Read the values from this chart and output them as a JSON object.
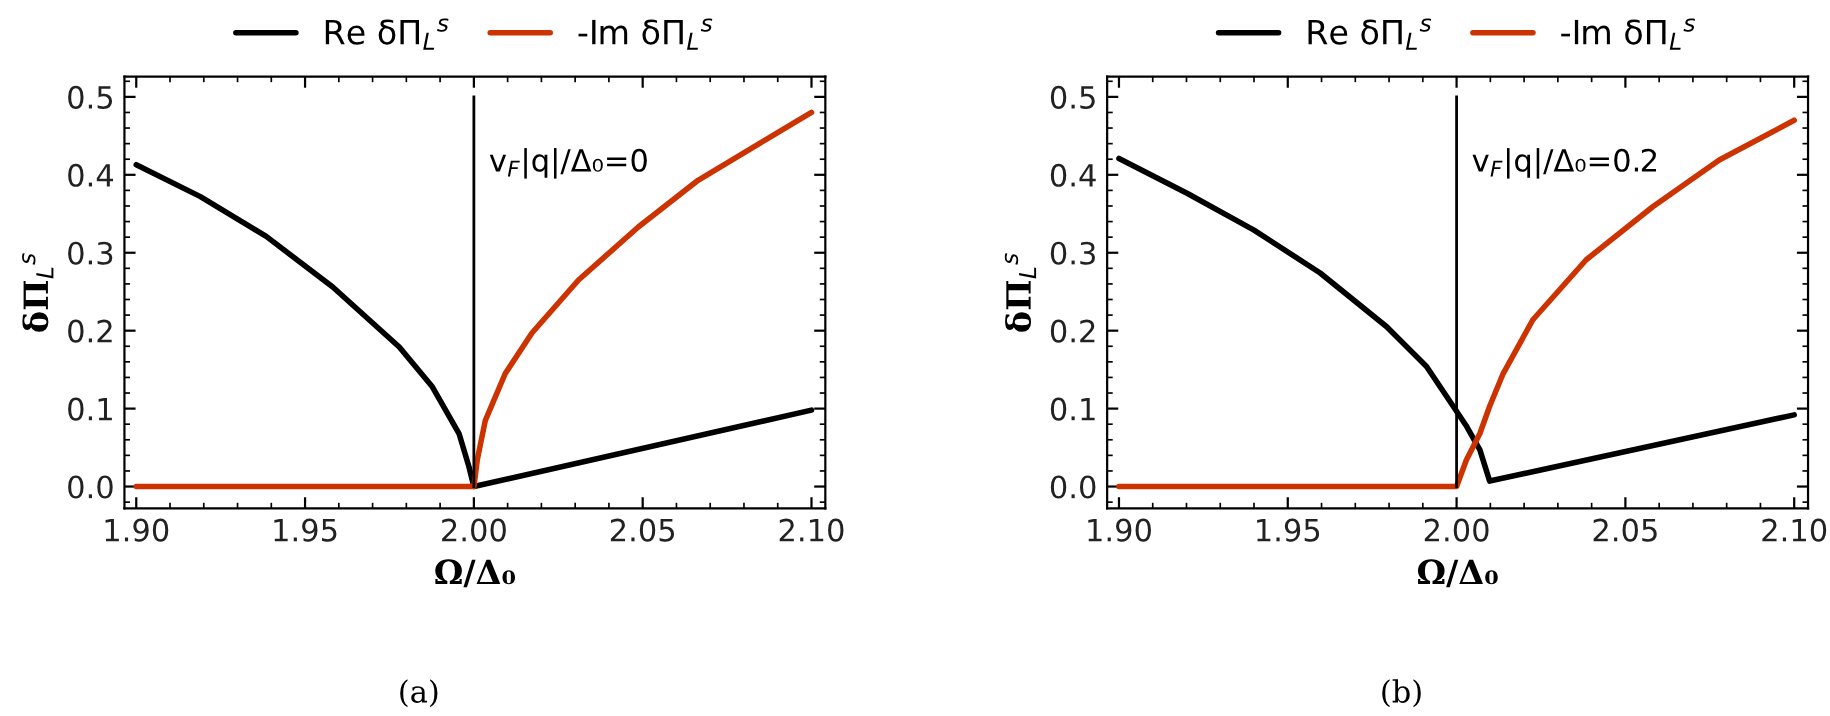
{
  "chart_data": [
    {
      "type": "line",
      "xlabel": "Ω/Δ₀",
      "ylabel": "δΠ$_{L}$$^{s}$",
      "xlim": [
        1.8965,
        2.1041
      ],
      "ylim": [
        -0.028,
        0.526
      ],
      "xticks": [
        {
          "value": 1.9,
          "label": "1.90"
        },
        {
          "value": 1.95,
          "label": "1.95"
        },
        {
          "value": 2.0,
          "label": "2.00"
        },
        {
          "value": 2.05,
          "label": "2.05"
        },
        {
          "value": 2.1,
          "label": "2.10"
        }
      ],
      "yticks": [
        {
          "value": 0,
          "label": "0.0"
        },
        0.1,
        0.2,
        0.3,
        0.4,
        0.5
      ],
      "grid": false,
      "legend": "top",
      "annotations": [
        "v$_{F}$|q|/Δ₀=0",
        "(a)"
      ],
      "ref_lines": [
        {
          "axis": "x",
          "value": 2.0,
          "color": "#000000"
        }
      ],
      "series": [
        {
          "name": "Re δΠ$_{L}$$^{s}$",
          "color": "#000000",
          "x": [
            1.9,
            1.919,
            1.9385,
            1.9582,
            1.9779,
            1.9877,
            1.9956,
            1.9985,
            2.0,
            2.1
          ],
          "values": [
            0.413,
            0.372,
            0.321,
            0.256,
            0.179,
            0.128,
            0.068,
            0.026,
            0.0,
            0.098
          ]
        },
        {
          "name": "-Im δΠ$_{L}$$^{s}$",
          "color": "#cc3300",
          "x": [
            1.9,
            2.0,
            2.001,
            2.0034,
            2.0093,
            2.0172,
            2.031,
            2.0487,
            2.0664,
            2.086,
            2.1
          ],
          "values": [
            0.0,
            0.0,
            0.034,
            0.085,
            0.145,
            0.197,
            0.265,
            0.333,
            0.393,
            0.444,
            0.48
          ]
        }
      ]
    },
    {
      "type": "line",
      "xlabel": "Ω/Δ₀",
      "ylabel": "δΠ$_{L}$$^{s}$",
      "xlim": [
        1.8965,
        2.1041
      ],
      "ylim": [
        -0.028,
        0.526
      ],
      "xticks": [
        {
          "value": 1.9,
          "label": "1.90"
        },
        {
          "value": 1.95,
          "label": "1.95"
        },
        {
          "value": 2.0,
          "label": "2.00"
        },
        {
          "value": 2.05,
          "label": "2.05"
        },
        {
          "value": 2.1,
          "label": "2.10"
        }
      ],
      "yticks": [
        {
          "value": 0,
          "label": "0.0"
        },
        0.1,
        0.2,
        0.3,
        0.4,
        0.5
      ],
      "grid": false,
      "legend": "top",
      "annotations": [
        "v$_{F}$|q|/Δ₀=0.2",
        "(b)"
      ],
      "ref_lines": [
        {
          "axis": "x",
          "value": 2.0,
          "color": "#000000"
        }
      ],
      "series": [
        {
          "name": "Re δΠ$_{L}$$^{s}$",
          "color": "#000000",
          "x": [
            1.9,
            1.9203,
            1.94,
            1.9596,
            1.9793,
            1.9911,
            1.999,
            2.003,
            2.0069,
            2.0098,
            2.1
          ],
          "values": [
            0.421,
            0.376,
            0.329,
            0.274,
            0.205,
            0.154,
            0.103,
            0.077,
            0.047,
            0.007,
            0.092
          ]
        },
        {
          "name": "-Im δΠ$_{L}$$^{s}$",
          "color": "#cc3300",
          "x": [
            1.9,
            2.0,
            2.0029,
            2.0069,
            2.0098,
            2.0138,
            2.0226,
            2.0384,
            2.0581,
            2.0778,
            2.1
          ],
          "values": [
            0.0,
            0.0,
            0.034,
            0.068,
            0.103,
            0.145,
            0.214,
            0.291,
            0.359,
            0.419,
            0.47
          ]
        }
      ]
    }
  ]
}
